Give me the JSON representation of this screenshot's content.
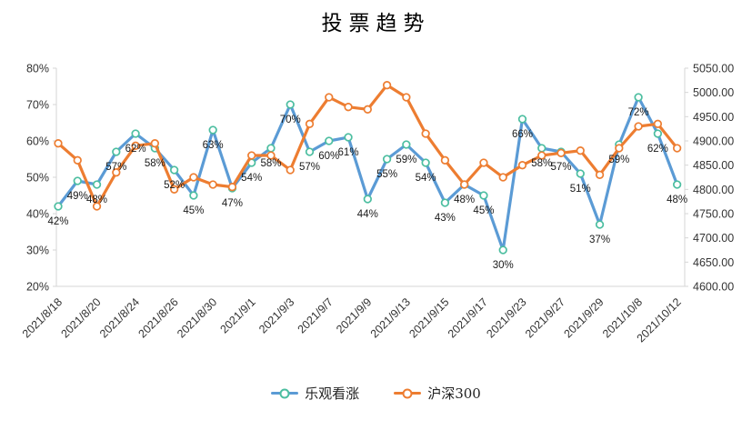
{
  "title": "投票趋势",
  "legend": [
    {
      "label": "乐观看涨",
      "line_color": "#5B9BD5",
      "marker_color": "#4CBEA0"
    },
    {
      "label": "沪深300",
      "line_color": "#ED7D31",
      "marker_color": "#ED7D31"
    }
  ],
  "chart_data": {
    "type": "line",
    "title": "投票趋势",
    "legend_position": "bottom",
    "grid": false,
    "x_labels": [
      "2021/8/18",
      "2021/8/20",
      "2021/8/24",
      "2021/8/26",
      "2021/8/30",
      "2021/9/1",
      "2021/9/3",
      "2021/9/7",
      "2021/9/9",
      "2021/9/13",
      "2021/9/15",
      "2021/9/17",
      "2021/9/23",
      "2021/9/27",
      "2021/9/29",
      "2021/10/8",
      "2021/10/12"
    ],
    "x_label_interval": 2,
    "point_count": 33,
    "left_axis": {
      "min": 20,
      "max": 80,
      "step": 10,
      "suffix": "%",
      "ticks": [
        "20%",
        "30%",
        "40%",
        "50%",
        "60%",
        "70%",
        "80%"
      ]
    },
    "right_axis": {
      "min": 4600,
      "max": 5050,
      "step": 50,
      "ticks": [
        "4600.00",
        "4650.00",
        "4700.00",
        "4750.00",
        "4800.00",
        "4850.00",
        "4900.00",
        "4950.00",
        "5000.00",
        "5050.00"
      ]
    },
    "series": [
      {
        "name": "乐观看涨",
        "axis": "left",
        "color": "#5B9BD5",
        "marker_color": "#4CBEA0",
        "show_labels": true,
        "values": [
          42,
          49,
          48,
          57,
          62,
          58,
          52,
          45,
          63,
          47,
          54,
          58,
          70,
          57,
          60,
          61,
          44,
          55,
          59,
          54,
          43,
          48,
          45,
          30,
          66,
          58,
          57,
          51,
          37,
          59,
          72,
          62,
          48
        ],
        "labels": [
          "42%",
          "49%",
          "48%",
          "57%",
          "62%",
          "58%",
          "52%",
          "45%",
          "63%",
          "47%",
          "54%",
          "58%",
          "70%",
          "57%",
          "60%",
          "61%",
          "44%",
          "55%",
          "59%",
          "54%",
          "43%",
          "48%",
          "45%",
          "30%",
          "66%",
          "58%",
          "57%",
          "51%",
          "37%",
          "59%",
          "72%",
          "62%",
          "48%"
        ]
      },
      {
        "name": "沪深300",
        "axis": "right",
        "color": "#ED7D31",
        "marker_color": "#ED7D31",
        "show_labels": false,
        "values": [
          4895,
          4860,
          4765,
          4835,
          4890,
          4895,
          4800,
          4825,
          4810,
          4805,
          4870,
          4870,
          4840,
          4935,
          4990,
          4970,
          4965,
          5015,
          4990,
          4915,
          4860,
          4810,
          4855,
          4825,
          4850,
          4870,
          4875,
          4880,
          4830,
          4885,
          4930,
          4935,
          4885
        ]
      }
    ]
  }
}
